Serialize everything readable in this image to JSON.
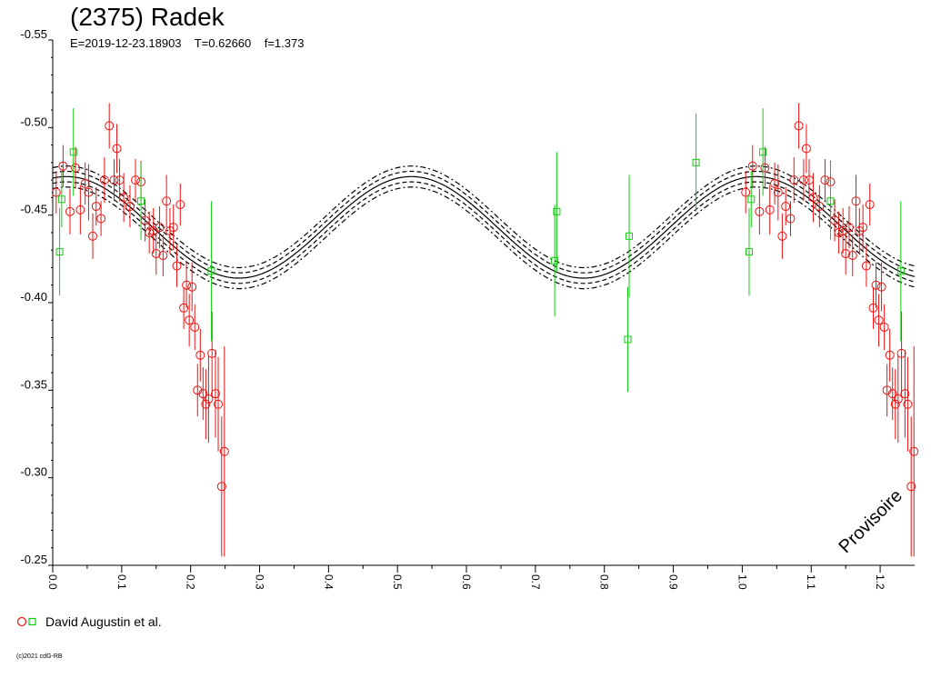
{
  "title": "(2375) Radek",
  "subtitle": "E=2019-12-23.18903    T=0.62660    f=1.373",
  "legend": {
    "label": "David Augustin et al."
  },
  "copyright": "(c)2021 cdG-RB",
  "watermark": "Provisoire",
  "colors": {
    "red_series": "#ee1111",
    "green_series": "#11cc11",
    "curve": "#000000"
  },
  "chart_data": {
    "type": "scatter",
    "title": "(2375) Radek",
    "xlim": [
      0.0,
      1.25
    ],
    "ylim": [
      -0.55,
      -0.25
    ],
    "y_inverted": true,
    "x_ticks": [
      0.0,
      0.1,
      0.2,
      0.3,
      0.4,
      0.5,
      0.6,
      0.7,
      0.8,
      0.9,
      1.0,
      1.1,
      1.2
    ],
    "x_tick_labels": [
      "0.0",
      "0.1",
      "0.2",
      "0.3",
      "0.4",
      "0.5",
      "0.6",
      "0.7",
      "0.8",
      "0.9",
      "1.0",
      "1.1",
      "1.2"
    ],
    "y_ticks": [
      -0.55,
      -0.5,
      -0.45,
      -0.4,
      -0.35,
      -0.3,
      -0.25
    ],
    "y_tick_labels": [
      "-0.55",
      "-0.50",
      "-0.45",
      "-0.40",
      "-0.35",
      "-0.30",
      "-0.25"
    ],
    "fit_curve": {
      "mean": -0.443,
      "amplitude": 0.029,
      "peak_phase": 0.52,
      "harmonic": 2,
      "band": 0.003,
      "band_outer": 0.006
    },
    "series": [
      {
        "name": "David Augustin et al.",
        "marker": "circle",
        "color": "#ee1111",
        "x": [
          0.005,
          0.015,
          0.025,
          0.033,
          0.04,
          0.047,
          0.052,
          0.058,
          0.063,
          0.07,
          0.075,
          0.082,
          0.089,
          0.093,
          0.097,
          0.103,
          0.112,
          0.12,
          0.128,
          0.134,
          0.14,
          0.146,
          0.15,
          0.155,
          0.16,
          0.165,
          0.17,
          0.175,
          0.18,
          0.185,
          0.19,
          0.194,
          0.198,
          0.202,
          0.206,
          0.21,
          0.214,
          0.218,
          0.222,
          0.226,
          0.231,
          0.236,
          0.24,
          0.245,
          0.249
        ],
        "y": [
          -0.463,
          -0.478,
          -0.452,
          -0.477,
          -0.453,
          -0.468,
          -0.463,
          -0.438,
          -0.455,
          -0.448,
          -0.47,
          -0.501,
          -0.47,
          -0.488,
          -0.47,
          -0.46,
          -0.455,
          -0.47,
          -0.469,
          -0.447,
          -0.44,
          -0.441,
          -0.428,
          -0.443,
          -0.427,
          -0.458,
          -0.441,
          -0.443,
          -0.421,
          -0.456,
          -0.397,
          -0.41,
          -0.39,
          -0.409,
          -0.386,
          -0.35,
          -0.37,
          -0.348,
          -0.342,
          -0.345,
          -0.371,
          -0.348,
          -0.342,
          -0.295,
          -0.315
        ],
        "err": [
          0.012,
          0.012,
          0.013,
          0.012,
          0.014,
          0.012,
          0.016,
          0.013,
          0.011,
          0.01,
          0.013,
          0.013,
          0.012,
          0.014,
          0.012,
          0.014,
          0.012,
          0.012,
          0.012,
          0.012,
          0.012,
          0.013,
          0.012,
          0.012,
          0.012,
          0.015,
          0.013,
          0.013,
          0.012,
          0.012,
          0.012,
          0.013,
          0.015,
          0.014,
          0.013,
          0.015,
          0.015,
          0.015,
          0.02,
          0.025,
          0.024,
          0.025,
          0.027,
          0.04,
          0.06
        ]
      },
      {
        "name": "",
        "marker": "square",
        "color": "#11cc11",
        "x": [
          0.01,
          0.013,
          0.03,
          0.128,
          0.23,
          0.728,
          0.731,
          0.834,
          0.836,
          0.933
        ],
        "y": [
          -0.429,
          -0.459,
          -0.486,
          -0.458,
          -0.418,
          -0.424,
          -0.452,
          -0.379,
          -0.438,
          -0.48
        ],
        "err": [
          0.025,
          0.016,
          0.025,
          0.022,
          0.04,
          0.032,
          0.034,
          0.03,
          0.035,
          0.028
        ]
      }
    ]
  }
}
